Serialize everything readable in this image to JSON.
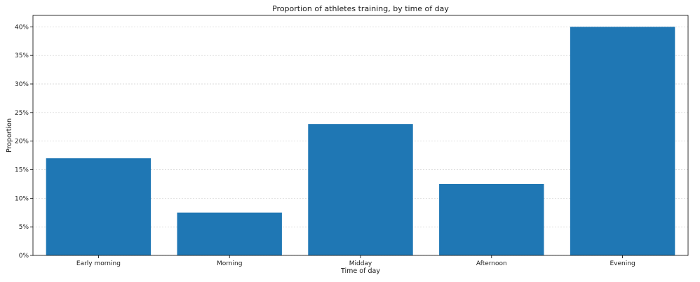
{
  "chart_data": {
    "type": "bar",
    "title": "Proportion of athletes training, by time of day",
    "xlabel": "Time of day",
    "ylabel": "Proportion",
    "categories": [
      "Early morning",
      "Morning",
      "Midday",
      "Afternoon",
      "Evening"
    ],
    "values": [
      0.17,
      0.075,
      0.23,
      0.125,
      0.4
    ],
    "ylim": [
      0,
      0.42
    ],
    "yticks": [
      0,
      0.05,
      0.1,
      0.15,
      0.2,
      0.25,
      0.3,
      0.35,
      0.4
    ],
    "ytick_labels": [
      "0%",
      "5%",
      "10%",
      "15%",
      "20%",
      "25%",
      "30%",
      "35%",
      "40%"
    ],
    "grid": "horizontal dashed",
    "colors": {
      "bar": "#1f77b4",
      "grid": "#d0d0d0",
      "axis": "#000000"
    }
  }
}
